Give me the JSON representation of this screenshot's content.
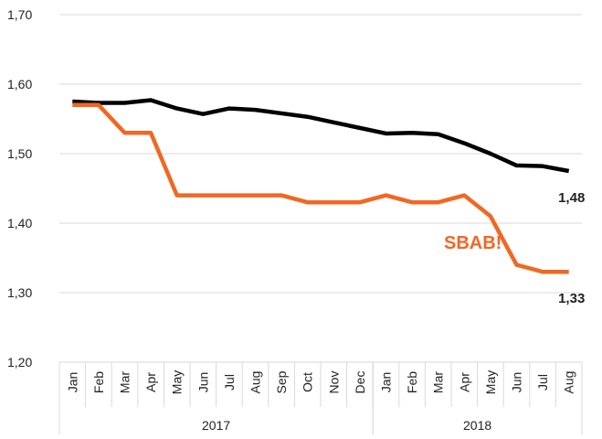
{
  "chart_data": {
    "type": "line",
    "categories": [
      "Jan",
      "Feb",
      "Mar",
      "Apr",
      "May",
      "Jun",
      "Jul",
      "Aug",
      "Sep",
      "Oct",
      "Nov",
      "Dec",
      "Jan",
      "Feb",
      "Mar",
      "Apr",
      "May",
      "Jun",
      "Jul",
      "Aug"
    ],
    "x_groups": [
      {
        "label": "2017",
        "span": 12
      },
      {
        "label": "2018",
        "span": 8
      }
    ],
    "series": [
      {
        "color": "#000000",
        "values": [
          1.575,
          1.573,
          1.573,
          1.577,
          1.565,
          1.557,
          1.565,
          1.563,
          1.558,
          1.553,
          1.545,
          1.537,
          1.529,
          1.53,
          1.528,
          1.515,
          1.5,
          1.483,
          1.482,
          1.475
        ],
        "value_labels": [
          null,
          null,
          null,
          null,
          null,
          null,
          null,
          null,
          null,
          null,
          null,
          null,
          null,
          null,
          null,
          null,
          null,
          null,
          null,
          "1,48"
        ]
      },
      {
        "name": "SBAB!",
        "color": "#f26722",
        "values": [
          1.57,
          1.57,
          1.53,
          1.53,
          1.44,
          1.44,
          1.44,
          1.44,
          1.44,
          1.43,
          1.43,
          1.43,
          1.44,
          1.43,
          1.43,
          1.44,
          1.41,
          1.34,
          1.33,
          1.33
        ],
        "value_labels": [
          null,
          null,
          null,
          null,
          null,
          null,
          null,
          null,
          null,
          null,
          null,
          null,
          null,
          null,
          null,
          null,
          null,
          null,
          null,
          "1,33"
        ]
      }
    ],
    "ylim": [
      1.2,
      1.7
    ],
    "yticks": [
      {
        "value": 1.2,
        "label": "1,20"
      },
      {
        "value": 1.3,
        "label": "1,30"
      },
      {
        "value": 1.4,
        "label": "1,40"
      },
      {
        "value": 1.5,
        "label": "1,50"
      },
      {
        "value": 1.6,
        "label": "1,60"
      },
      {
        "value": 1.7,
        "label": "1,70"
      }
    ],
    "grid": true
  }
}
